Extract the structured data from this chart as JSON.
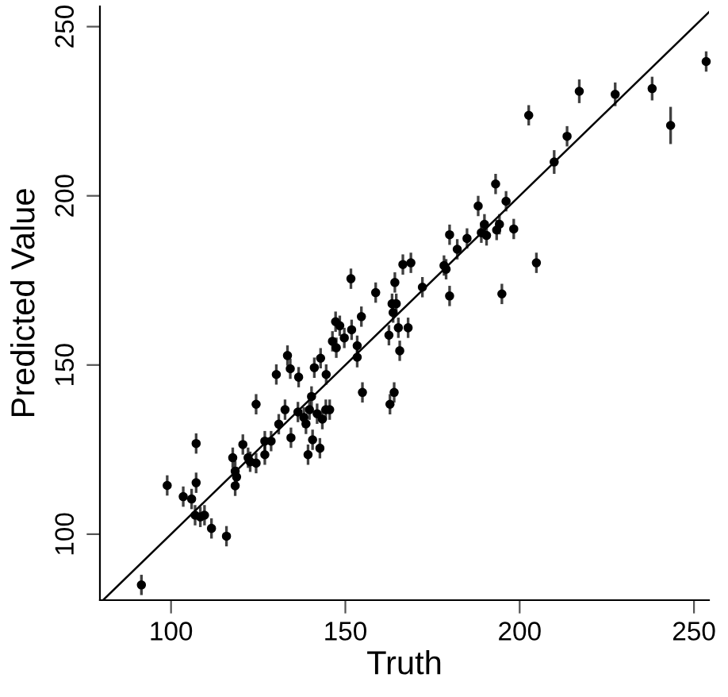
{
  "chart_data": {
    "type": "scatter",
    "xlabel": "Truth",
    "ylabel": "Predicted Value",
    "xlim": [
      79.6,
      254.3
    ],
    "ylim": [
      80.5,
      256
    ],
    "xticks": [
      100,
      150,
      200,
      250
    ],
    "yticks": [
      100,
      150,
      200,
      250
    ],
    "grid": false,
    "legend": false,
    "series": [
      {
        "color": "#000000",
        "marker": "circle",
        "x": [
          91.5,
          98.9,
          103.5,
          105.9,
          107.2,
          107.2,
          106.9,
          108.4,
          109.6,
          111.6,
          115.9,
          117.7,
          118.4,
          118.8,
          118.4,
          120.6,
          122.1,
          122.7,
          124.4,
          124.4,
          126.9,
          126.9,
          128.7,
          130.9,
          132.7,
          134.4,
          136.4,
          138.1,
          138.7,
          139.7,
          139.3,
          140.6,
          141.9,
          142.7,
          143.4,
          144.4,
          145.5,
          162.8,
          130.2,
          133.4,
          134.2,
          136.6,
          141.1,
          142.9,
          144.5,
          140.3,
          146.3,
          147.4,
          147.2,
          148.4,
          149.7,
          151.8,
          151.6,
          153.4,
          153.4,
          154.6,
          154.9,
          158.7,
          162.5,
          164.0,
          163.4,
          164.6,
          164.2,
          163.7,
          165.2,
          165.6,
          168.0,
          166.5,
          168.8,
          172.1,
          178.3,
          178.9,
          179.9,
          179.9,
          182.1,
          184.9,
          188.1,
          189.0,
          189.9,
          190.5,
          193.4,
          194.2,
          193.1,
          196.1,
          194.9,
          198.3,
          204.8,
          202.6,
          209.9,
          213.6,
          217.1,
          227.4,
          238.0,
          243.3,
          253.5
        ],
        "values": [
          85.0,
          114.4,
          111.1,
          110.4,
          115.2,
          126.8,
          105.6,
          105.1,
          105.6,
          101.7,
          99.4,
          122.6,
          118.6,
          116.9,
          114.3,
          126.5,
          122.6,
          121.4,
          121.0,
          138.4,
          127.5,
          123.5,
          127.5,
          132.5,
          136.8,
          128.5,
          136.1,
          134.5,
          132.6,
          136.8,
          123.5,
          127.9,
          135.6,
          125.4,
          134.0,
          136.8,
          136.8,
          138.4,
          147.2,
          152.8,
          148.9,
          146.4,
          149.2,
          152.0,
          147.2,
          140.7,
          157.0,
          155.1,
          162.8,
          161.6,
          158.0,
          160.4,
          175.5,
          155.7,
          152.3,
          164.3,
          141.9,
          171.4,
          158.8,
          141.9,
          168.1,
          168.1,
          174.4,
          165.5,
          161.0,
          154.2,
          161.0,
          179.7,
          180.2,
          173.0,
          179.4,
          178.3,
          170.4,
          188.5,
          184.2,
          187.4,
          197.0,
          189.1,
          191.6,
          188.3,
          189.9,
          191.6,
          203.5,
          198.4,
          171.0,
          190.2,
          180.2,
          223.8,
          210.0,
          217.6,
          230.9,
          230.0,
          231.7,
          220.8,
          239.7
        ],
        "errors": [
          3,
          3,
          3,
          3,
          3,
          3,
          3,
          3,
          3,
          3,
          3,
          3,
          3,
          3,
          3,
          3,
          3,
          3,
          3,
          3,
          3,
          3,
          3,
          3,
          3,
          3,
          3,
          3,
          3,
          3,
          3,
          3,
          3,
          3,
          3,
          3,
          3,
          3,
          3,
          3,
          3,
          3,
          3,
          3,
          3,
          3,
          3,
          3,
          3,
          3,
          3,
          3,
          3,
          3,
          3,
          3,
          3,
          3,
          3,
          3,
          3,
          3,
          3,
          3,
          3,
          3,
          3,
          3,
          3,
          3,
          3,
          3,
          3,
          3,
          3,
          3,
          3,
          3,
          3,
          3,
          3,
          3,
          3,
          3,
          3,
          3,
          3,
          3,
          3.5,
          3,
          3.5,
          3.5,
          3.5,
          5.5,
          3
        ]
      },
      {
        "type": "line",
        "color": "#000000",
        "line_style": "solid",
        "x": [
          80.5,
          254.3
        ],
        "values": [
          80.5,
          254.3
        ]
      }
    ]
  }
}
